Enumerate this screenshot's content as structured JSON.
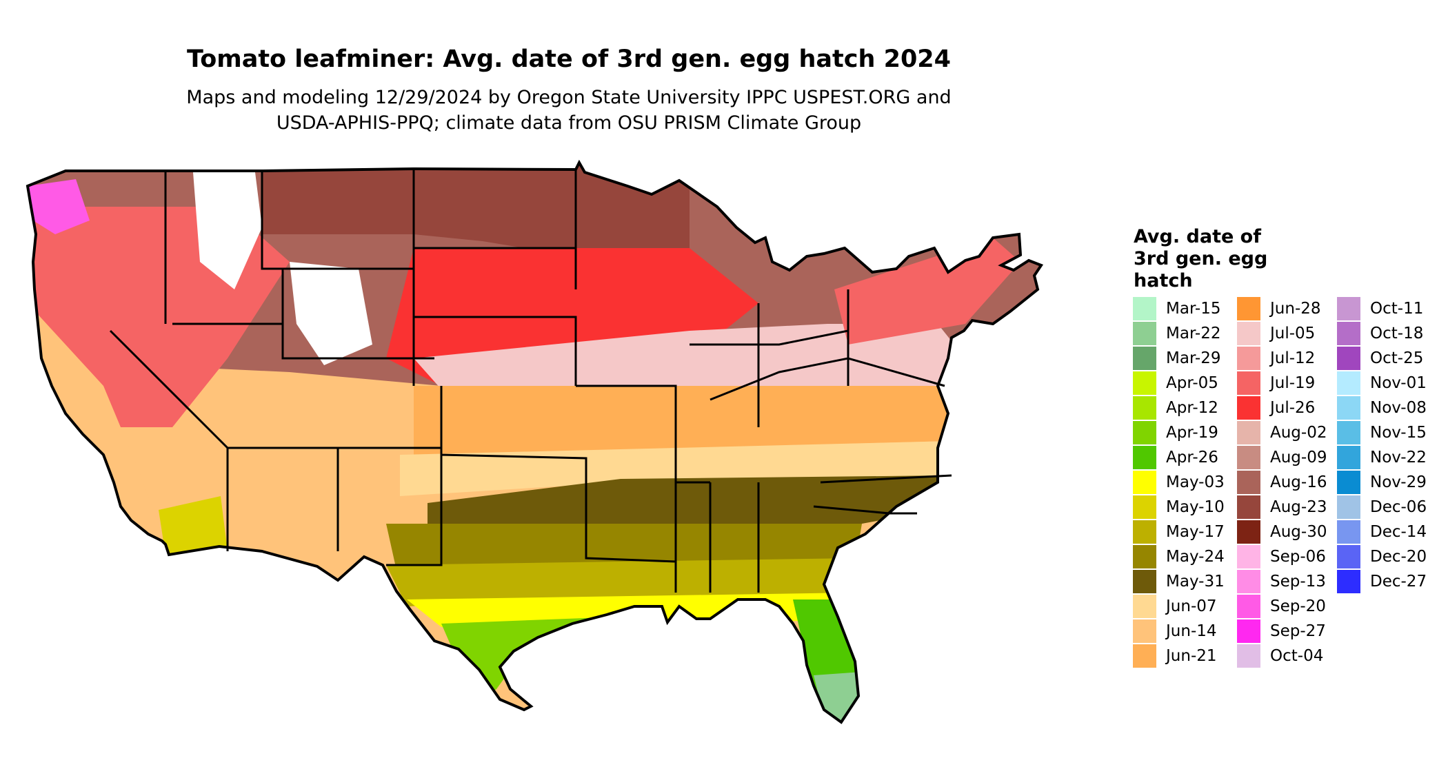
{
  "title": "Tomato leafminer: Avg. date of 3rd gen. egg hatch 2024",
  "subtitle_line1": "Maps and modeling 12/29/2024 by Oregon State University IPPC USPEST.ORG and",
  "subtitle_line2": "USDA-APHIS-PPQ; climate data from OSU PRISM Climate Group",
  "legend": {
    "title_lines": [
      "Avg. date of",
      "3rd gen. egg",
      "hatch"
    ],
    "columns": [
      [
        {
          "label": "Mar-15",
          "color": "#b3f5c8"
        },
        {
          "label": "Mar-22",
          "color": "#8ecf92"
        },
        {
          "label": "Mar-29",
          "color": "#66a66a"
        },
        {
          "label": "Apr-05",
          "color": "#c8f500"
        },
        {
          "label": "Apr-12",
          "color": "#a8e600"
        },
        {
          "label": "Apr-19",
          "color": "#80d400"
        },
        {
          "label": "Apr-26",
          "color": "#50c800"
        },
        {
          "label": "May-03",
          "color": "#ffff00"
        },
        {
          "label": "May-10",
          "color": "#dcd300"
        },
        {
          "label": "May-17",
          "color": "#bdb000"
        },
        {
          "label": "May-24",
          "color": "#968600"
        },
        {
          "label": "May-31",
          "color": "#6e5a0a"
        },
        {
          "label": "Jun-07",
          "color": "#ffd992"
        },
        {
          "label": "Jun-14",
          "color": "#ffc37a"
        },
        {
          "label": "Jun-21",
          "color": "#ffaf55"
        }
      ],
      [
        {
          "label": "Jun-28",
          "color": "#ff9633"
        },
        {
          "label": "Jul-05",
          "color": "#f5c8c8"
        },
        {
          "label": "Jul-12",
          "color": "#f59a9a"
        },
        {
          "label": "Jul-19",
          "color": "#f56464"
        },
        {
          "label": "Jul-26",
          "color": "#fa3232"
        },
        {
          "label": "Aug-02",
          "color": "#e6b4aa"
        },
        {
          "label": "Aug-09",
          "color": "#c88c82"
        },
        {
          "label": "Aug-16",
          "color": "#aa645a"
        },
        {
          "label": "Aug-23",
          "color": "#96463c"
        },
        {
          "label": "Aug-30",
          "color": "#7d2314"
        },
        {
          "label": "Sep-06",
          "color": "#ffb4e6"
        },
        {
          "label": "Sep-13",
          "color": "#ff8ce6"
        },
        {
          "label": "Sep-20",
          "color": "#ff5ae6"
        },
        {
          "label": "Sep-27",
          "color": "#ff28f0"
        },
        {
          "label": "Oct-04",
          "color": "#e1bee6"
        }
      ],
      [
        {
          "label": "Oct-11",
          "color": "#c896d2"
        },
        {
          "label": "Oct-18",
          "color": "#b46ec8"
        },
        {
          "label": "Oct-25",
          "color": "#a046be"
        },
        {
          "label": "Nov-01",
          "color": "#b4ebff"
        },
        {
          "label": "Nov-08",
          "color": "#8cd7f5"
        },
        {
          "label": "Nov-15",
          "color": "#5abee6"
        },
        {
          "label": "Nov-22",
          "color": "#32a5dc"
        },
        {
          "label": "Nov-29",
          "color": "#0a8cd2"
        },
        {
          "label": "Dec-06",
          "color": "#a0c3e6"
        },
        {
          "label": "Dec-14",
          "color": "#7896f0"
        },
        {
          "label": "Dec-20",
          "color": "#5a64f5"
        },
        {
          "label": "Dec-27",
          "color": "#2d2dff"
        }
      ]
    ]
  },
  "map_colors": {
    "outline": "#000000",
    "snow": "#ffffff",
    "pnw_magenta": "#ff5ae6",
    "north_brown": "#96463c",
    "north_mid": "#aa645a",
    "plains_red": "#fa3232",
    "pink_light": "#f5c8c8",
    "orange_band": "#ffaf55",
    "peach": "#ffd992",
    "olive_dark": "#6e5a0a",
    "olive": "#968600",
    "olive_light": "#bdb000",
    "gulf_yellow": "#ffff00",
    "gulf_green": "#80d400",
    "florida_green": "#50c800",
    "florida_tip": "#8ecf92"
  }
}
